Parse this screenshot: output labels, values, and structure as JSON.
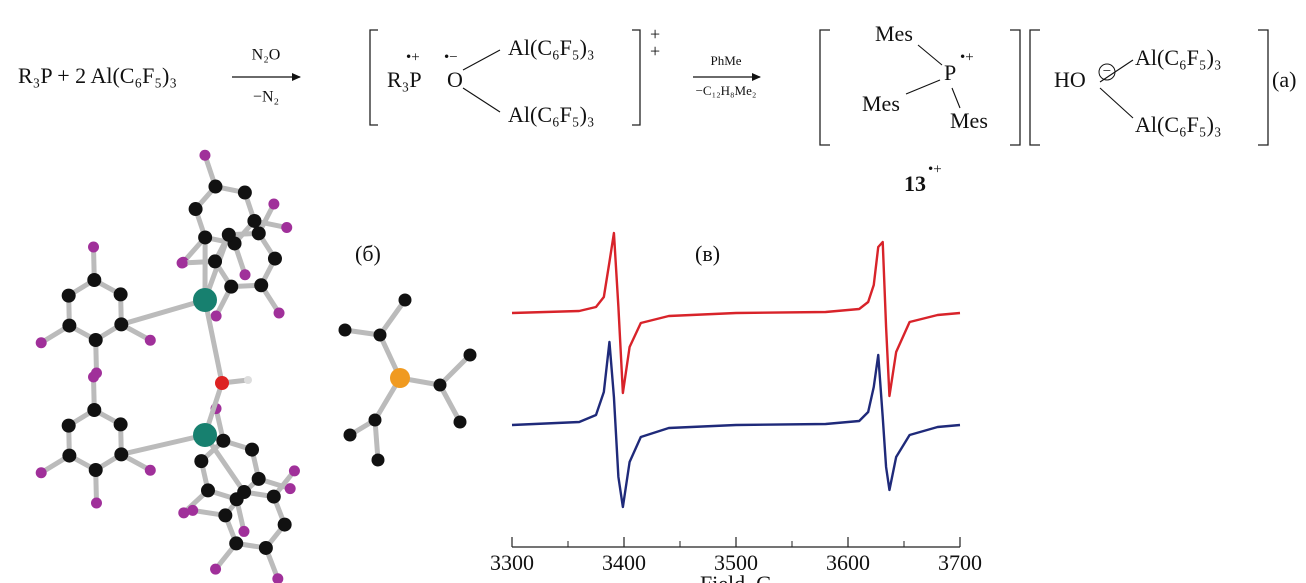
{
  "scheme": {
    "reactants": "R₃P + 2 Al(C₆F₅)₃",
    "arrow1_above": "N₂O",
    "arrow1_below": "−N₂",
    "intermediate": {
      "phosphorus": "R₃P",
      "phosphorus_charge": "•+",
      "oxygen": "O",
      "oxygen_charge": "•−",
      "al_top": "Al(C₆F₅)₃",
      "al_bottom": "Al(C₆F₅)₃",
      "charge_top": "+",
      "charge_bottom": "+"
    },
    "arrow2_above": "PhMe",
    "arrow2_below": "−C₁₂H₈Me₂",
    "cation": {
      "mes_top": "Mes",
      "mes_left": "Mes",
      "mes_bottom": "Mes",
      "phosphorus": "P",
      "phosphorus_charge": "•+"
    },
    "anion": {
      "hydroxide": "HO",
      "minus": "−",
      "al_top": "Al(C₆F₅)₃",
      "al_bottom": "Al(C₆F₅)₃"
    },
    "label": "(a)",
    "compound_number": "13",
    "compound_charge": "•+"
  },
  "panel_b_label": "(б)",
  "panel_c_label": "(в)",
  "chart_data": {
    "type": "line",
    "x_label": "Field, G",
    "x": [
      3300,
      3360,
      3375,
      3382,
      3387,
      3391,
      3395,
      3399,
      3405,
      3415,
      3440,
      3500,
      3580,
      3610,
      3618,
      3623,
      3627,
      3631,
      3634,
      3637,
      3643,
      3655,
      3680,
      3700
    ],
    "series": [
      {
        "color": "#d8232a",
        "values": [
          234,
          236,
          240,
          250,
          285,
          314,
          240,
          154,
          200,
          224,
          231,
          234,
          235,
          238,
          245,
          262,
          300,
          305,
          220,
          151,
          195,
          225,
          232,
          234
        ]
      },
      {
        "color": "#1f2a7a",
        "values": [
          122,
          125,
          132,
          155,
          205,
          150,
          70,
          40,
          85,
          110,
          119,
          122,
          123,
          126,
          135,
          160,
          192,
          130,
          80,
          57,
          90,
          112,
          120,
          122
        ]
      }
    ],
    "xlim": [
      3300,
      3700
    ],
    "xticks": [
      3300,
      3400,
      3500,
      3600,
      3700
    ],
    "minor_xticks": [
      3350,
      3450,
      3550,
      3650
    ],
    "ylim": [
      0,
      340
    ]
  }
}
